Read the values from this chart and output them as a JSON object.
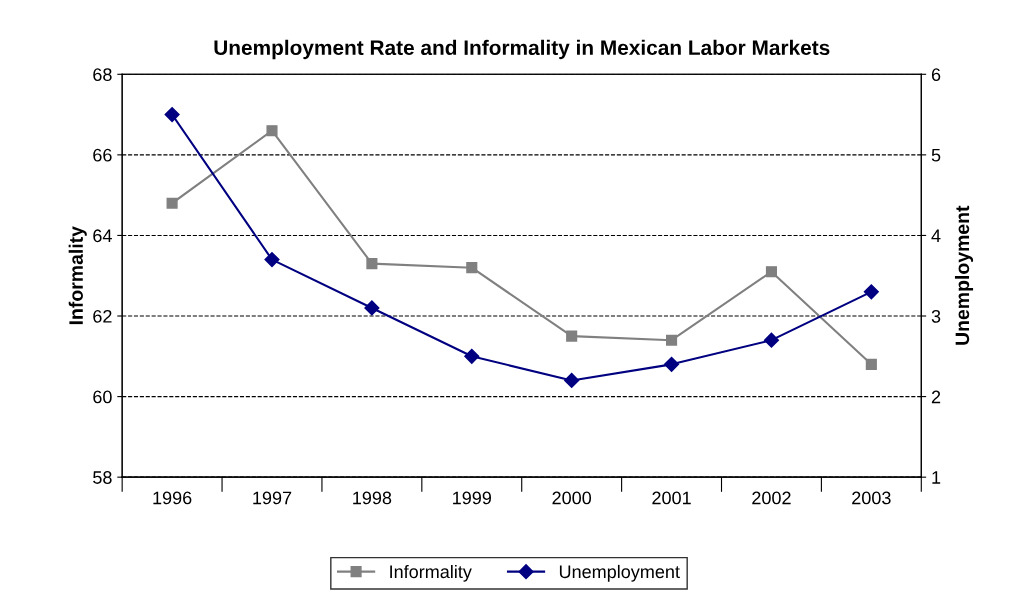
{
  "chart_data": {
    "type": "line",
    "title": "Unemployment Rate and Informality in Mexican Labor Markets",
    "ylabel": "Informality",
    "y2label": "Unemployment",
    "categories": [
      "1996",
      "1997",
      "1998",
      "1999",
      "2000",
      "2001",
      "2002",
      "2003"
    ],
    "series": [
      {
        "name": "Informality",
        "color": "#808080",
        "marker": "square",
        "values": [
          64.8,
          66.6,
          63.3,
          63.2,
          61.5,
          61.4,
          63.1,
          60.8
        ]
      },
      {
        "name": "Unemployment",
        "color": "#000080",
        "marker": "diamond",
        "axis": "y2",
        "values": [
          5.5,
          3.7,
          3.1,
          2.5,
          2.2,
          2.4,
          2.7,
          3.3
        ]
      }
    ],
    "ylim": [
      58,
      68
    ],
    "yticks": [
      58,
      60,
      62,
      64,
      66,
      68
    ],
    "y2lim": [
      1,
      6
    ],
    "y2ticks": [
      1,
      2,
      3,
      4,
      5,
      6
    ],
    "grid": "y",
    "legend": "bottom",
    "line_style": "solid"
  }
}
